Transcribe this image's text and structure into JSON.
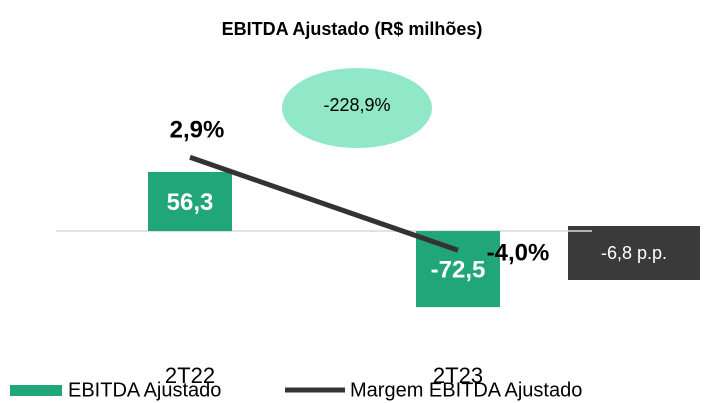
{
  "chart_data": {
    "type": "bar",
    "title": "EBITDA Ajustado (R$ milhões)",
    "categories": [
      "2T22",
      "2T23"
    ],
    "series": [
      {
        "name": "EBITDA Ajustado",
        "type": "bar",
        "color": "#21a67a",
        "values": [
          56.3,
          -72.5
        ],
        "value_labels": [
          "56,3",
          "-72,5"
        ]
      },
      {
        "name": "Margem EBITDA Ajustado",
        "type": "line",
        "axis": "y2",
        "color": "#333333",
        "values": [
          2.9,
          -4.0
        ],
        "value_labels": [
          "2,9%",
          "-4,0%"
        ]
      }
    ],
    "ylim": [
      -80,
      182
    ],
    "y2lim": [
      -8.8,
      11.6
    ],
    "annotations": [
      "-228,9%",
      "-6,8 p.p."
    ]
  }
}
